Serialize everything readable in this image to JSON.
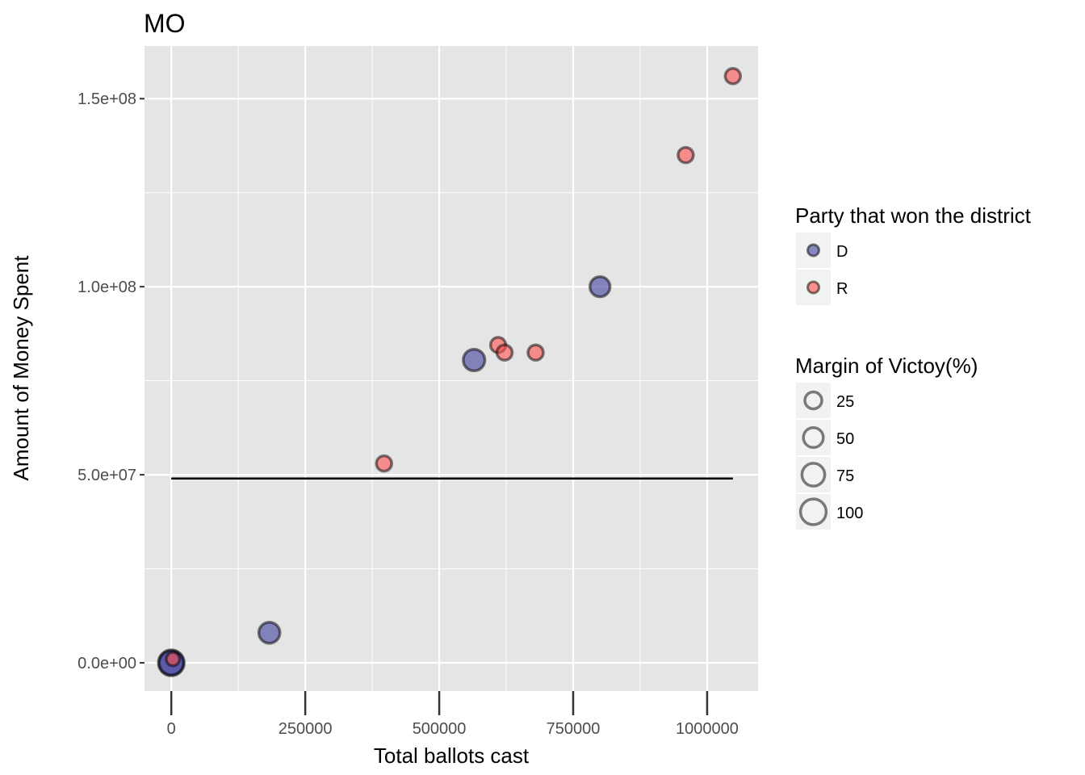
{
  "chart_data": {
    "type": "scatter",
    "title": "MO",
    "xlabel": "Total ballots cast",
    "ylabel": "Amount of Money Spent",
    "xlim": [
      -50000,
      1095000
    ],
    "ylim": [
      -7500000,
      164000000
    ],
    "x_ticks": [
      0,
      250000,
      500000,
      750000,
      1000000
    ],
    "x_tick_labels": [
      "0",
      "250000",
      "500000",
      "750000",
      "1000000"
    ],
    "y_ticks": [
      0,
      50000000,
      100000000,
      150000000
    ],
    "y_tick_labels": [
      "0.0e+00",
      "5.0e+07",
      "1.0e+08",
      "1.5e+08"
    ],
    "grid": true,
    "legend_position": "right",
    "colors": {
      "D": "#3f3f9f",
      "R": "#ff5050",
      "panel": "#e5e5e5",
      "grid": "#ffffff"
    },
    "legends": {
      "party": {
        "title": "Party that won the district",
        "entries": [
          {
            "label": "D",
            "color": "#3f3f9f"
          },
          {
            "label": "R",
            "color": "#ff5050"
          }
        ]
      },
      "margin": {
        "title": "Margin of Victoy(%)",
        "entries": [
          {
            "label": "25",
            "value": 25
          },
          {
            "label": "50",
            "value": 50
          },
          {
            "label": "75",
            "value": 75
          },
          {
            "label": "100",
            "value": 100
          }
        ]
      }
    },
    "series": [
      {
        "name": "D",
        "points": [
          {
            "x": 565000,
            "y": 80500000,
            "margin": 55
          },
          {
            "x": 800000,
            "y": 100000000,
            "margin": 42
          },
          {
            "x": 183000,
            "y": 8000000,
            "margin": 50
          },
          {
            "x": 0,
            "y": 0,
            "margin": 100
          },
          {
            "x": 0,
            "y": 0,
            "margin": 80
          }
        ]
      },
      {
        "name": "R",
        "points": [
          {
            "x": 1048000,
            "y": 156000000,
            "margin": 12
          },
          {
            "x": 960000,
            "y": 135000000,
            "margin": 12
          },
          {
            "x": 610000,
            "y": 84500000,
            "margin": 12
          },
          {
            "x": 622000,
            "y": 82500000,
            "margin": 12
          },
          {
            "x": 680000,
            "y": 82500000,
            "margin": 12
          },
          {
            "x": 397000,
            "y": 53000000,
            "margin": 12
          },
          {
            "x": 3000,
            "y": 1000000,
            "margin": 5
          }
        ]
      }
    ],
    "reference_line": {
      "y": 49000000,
      "x_from": 0,
      "x_to": 1048000,
      "color": "#000000"
    }
  }
}
